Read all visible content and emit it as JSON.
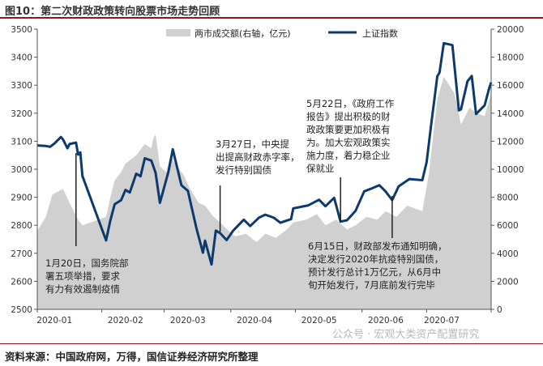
{
  "figure": {
    "title": "图10：第二次财政政策转向股票市场走势回顾",
    "source": "资料来源：中国政府网，万得，国信证券经济研究所整理",
    "watermark": "公众号 · 宏观大类资产配置研究"
  },
  "chart_data": {
    "type": "line+area",
    "xlabels": [
      "2020-01",
      "2020-02",
      "2020-03",
      "2020-04",
      "2020-05",
      "2020-06",
      "2020-07"
    ],
    "x_range": [
      "2020-01-02",
      "2020-07-31"
    ],
    "y_left": {
      "range": [
        2500,
        3500
      ],
      "ticks": [
        2500,
        2600,
        2700,
        2800,
        2900,
        3000,
        3100,
        3200,
        3300,
        3400,
        3500
      ]
    },
    "y_right": {
      "range": [
        0,
        20000
      ],
      "ticks": [
        0,
        2000,
        4000,
        6000,
        8000,
        10000,
        12000,
        14000,
        16000,
        18000,
        20000
      ]
    },
    "legend_position": "top",
    "series": [
      {
        "name": "两市成交额(右轴，亿元)",
        "type": "area",
        "axis": "right",
        "color": "#d0d0d0",
        "points": [
          [
            "2020-01-02",
            5600
          ],
          [
            "2020-01-06",
            6600
          ],
          [
            "2020-01-09",
            8200
          ],
          [
            "2020-01-14",
            8600
          ],
          [
            "2020-01-17",
            7600
          ],
          [
            "2020-01-21",
            6400
          ],
          [
            "2020-01-23",
            6000
          ],
          [
            "2020-02-03",
            6600
          ],
          [
            "2020-02-05",
            8000
          ],
          [
            "2020-02-07",
            9200
          ],
          [
            "2020-02-10",
            9800
          ],
          [
            "2020-02-12",
            10400
          ],
          [
            "2020-02-17",
            11000
          ],
          [
            "2020-02-19",
            11400
          ],
          [
            "2020-02-21",
            11800
          ],
          [
            "2020-02-24",
            11500
          ],
          [
            "2020-02-25",
            12200
          ],
          [
            "2020-02-26",
            12500
          ],
          [
            "2020-02-28",
            10200
          ],
          [
            "2020-03-02",
            9800
          ],
          [
            "2020-03-04",
            11000
          ],
          [
            "2020-03-06",
            10400
          ],
          [
            "2020-03-10",
            9600
          ],
          [
            "2020-03-13",
            8600
          ],
          [
            "2020-03-17",
            7600
          ],
          [
            "2020-03-20",
            7400
          ],
          [
            "2020-03-24",
            6600
          ],
          [
            "2020-03-27",
            6200
          ],
          [
            "2020-03-31",
            5600
          ],
          [
            "2020-04-03",
            5200
          ],
          [
            "2020-04-08",
            5400
          ],
          [
            "2020-04-13",
            4800
          ],
          [
            "2020-04-17",
            5400
          ],
          [
            "2020-04-22",
            5100
          ],
          [
            "2020-04-27",
            5700
          ],
          [
            "2020-04-30",
            6200
          ],
          [
            "2020-05-06",
            6400
          ],
          [
            "2020-05-11",
            6800
          ],
          [
            "2020-05-15",
            6000
          ],
          [
            "2020-05-20",
            6400
          ],
          [
            "2020-05-25",
            5700
          ],
          [
            "2020-05-29",
            6000
          ],
          [
            "2020-06-03",
            6600
          ],
          [
            "2020-06-08",
            6400
          ],
          [
            "2020-06-12",
            7000
          ],
          [
            "2020-06-17",
            6600
          ],
          [
            "2020-06-22",
            7400
          ],
          [
            "2020-06-29",
            7000
          ],
          [
            "2020-07-02",
            9600
          ],
          [
            "2020-07-06",
            15000
          ],
          [
            "2020-07-09",
            16600
          ],
          [
            "2020-07-14",
            15400
          ],
          [
            "2020-07-17",
            13200
          ],
          [
            "2020-07-21",
            14400
          ],
          [
            "2020-07-24",
            14000
          ],
          [
            "2020-07-28",
            13800
          ],
          [
            "2020-07-31",
            15400
          ]
        ]
      },
      {
        "name": "上证指数",
        "type": "line",
        "axis": "left",
        "color": "#0d3a6e",
        "points": [
          [
            "2020-01-02",
            3085
          ],
          [
            "2020-01-06",
            3083
          ],
          [
            "2020-01-08",
            3080
          ],
          [
            "2020-01-10",
            3092
          ],
          [
            "2020-01-13",
            3115
          ],
          [
            "2020-01-14",
            3106
          ],
          [
            "2020-01-16",
            3075
          ],
          [
            "2020-01-17",
            3090
          ],
          [
            "2020-01-20",
            3095
          ],
          [
            "2020-01-21",
            3052
          ],
          [
            "2020-01-22",
            3060
          ],
          [
            "2020-01-23",
            2976
          ],
          [
            "2020-02-03",
            2746
          ],
          [
            "2020-02-04",
            2783
          ],
          [
            "2020-02-05",
            2818
          ],
          [
            "2020-02-07",
            2875
          ],
          [
            "2020-02-10",
            2890
          ],
          [
            "2020-02-12",
            2926
          ],
          [
            "2020-02-14",
            2917
          ],
          [
            "2020-02-17",
            2984
          ],
          [
            "2020-02-19",
            2975
          ],
          [
            "2020-02-21",
            3039
          ],
          [
            "2020-02-24",
            3031
          ],
          [
            "2020-02-26",
            2987
          ],
          [
            "2020-02-28",
            2880
          ],
          [
            "2020-03-03",
            2992
          ],
          [
            "2020-03-05",
            3071
          ],
          [
            "2020-03-09",
            2943
          ],
          [
            "2020-03-12",
            2923
          ],
          [
            "2020-03-16",
            2789
          ],
          [
            "2020-03-19",
            2702
          ],
          [
            "2020-03-20",
            2745
          ],
          [
            "2020-03-23",
            2660
          ],
          [
            "2020-03-25",
            2781
          ],
          [
            "2020-03-27",
            2772
          ],
          [
            "2020-03-30",
            2747
          ],
          [
            "2020-04-02",
            2780
          ],
          [
            "2020-04-07",
            2820
          ],
          [
            "2020-04-10",
            2797
          ],
          [
            "2020-04-14",
            2827
          ],
          [
            "2020-04-17",
            2838
          ],
          [
            "2020-04-21",
            2827
          ],
          [
            "2020-04-24",
            2809
          ],
          [
            "2020-04-29",
            2822
          ],
          [
            "2020-04-30",
            2860
          ],
          [
            "2020-05-07",
            2871
          ],
          [
            "2020-05-12",
            2891
          ],
          [
            "2020-05-15",
            2868
          ],
          [
            "2020-05-19",
            2898
          ],
          [
            "2020-05-22",
            2813
          ],
          [
            "2020-05-25",
            2818
          ],
          [
            "2020-05-29",
            2852
          ],
          [
            "2020-06-02",
            2921
          ],
          [
            "2020-06-05",
            2930
          ],
          [
            "2020-06-09",
            2943
          ],
          [
            "2020-06-12",
            2920
          ],
          [
            "2020-06-15",
            2890
          ],
          [
            "2020-06-18",
            2939
          ],
          [
            "2020-06-23",
            2965
          ],
          [
            "2020-06-29",
            2961
          ],
          [
            "2020-07-01",
            3025
          ],
          [
            "2020-07-03",
            3152
          ],
          [
            "2020-07-06",
            3332
          ],
          [
            "2020-07-07",
            3345
          ],
          [
            "2020-07-09",
            3450
          ],
          [
            "2020-07-13",
            3443
          ],
          [
            "2020-07-16",
            3210
          ],
          [
            "2020-07-17",
            3214
          ],
          [
            "2020-07-20",
            3314
          ],
          [
            "2020-07-22",
            3333
          ],
          [
            "2020-07-24",
            3197
          ],
          [
            "2020-07-28",
            3228
          ],
          [
            "2020-07-30",
            3286
          ],
          [
            "2020-07-31",
            3310
          ]
        ]
      }
    ],
    "annotations": [
      {
        "name": "jan20",
        "date": "2020-01-20",
        "lines": [
          "1月20日，国务院部",
          "署五项举措，要求",
          "有力有效遏制疫情"
        ]
      },
      {
        "name": "mar27",
        "date": "2020-03-27",
        "lines": [
          "3月27日，中央提",
          "出提高财政赤字率，",
          "发行特别国债"
        ]
      },
      {
        "name": "may22",
        "date": "2020-05-22",
        "lines": [
          "5月22日，《政府工作",
          "报告》提出积极的财",
          "政政策要更加积极有",
          "为。加大宏观政策实",
          "施力度，着力稳企业",
          "保就业"
        ]
      },
      {
        "name": "jun15",
        "date": "2020-06-15",
        "lines": [
          "6月15日，财政部发布通知明确，",
          "决定发行2020年抗疫特别国债，",
          "预计发行总计1万亿元，从6月中",
          "旬开始发行，7月底前发行完毕"
        ]
      }
    ]
  }
}
